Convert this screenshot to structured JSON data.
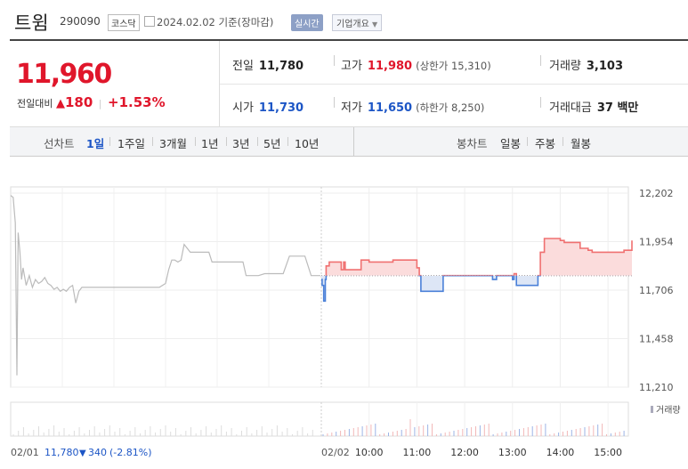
{
  "header": {
    "name": "트윔",
    "code": "290090",
    "market": "코스닥",
    "date_info": "2024.02.02 기준(장마감)",
    "realtime": "실시간",
    "company_info": "기업개요"
  },
  "quote": {
    "price": "11,960",
    "change_label": "전일대비",
    "change": "180",
    "change_pct": "+1.53%",
    "prev_close_label": "전일",
    "prev_close": "11,780",
    "high_label": "고가",
    "high": "11,980",
    "upper_limit": "(상한가 15,310)",
    "volume_label": "거래량",
    "volume": "3,103",
    "open_label": "시가",
    "open": "11,730",
    "low_label": "저가",
    "low": "11,650",
    "lower_limit": "(하한가 8,250)",
    "turnover_label": "거래대금",
    "turnover": "37 백만"
  },
  "tabs": {
    "line_label": "선차트",
    "periods": [
      "1일",
      "1주일",
      "3개월",
      "1년",
      "3년",
      "5년",
      "10년"
    ],
    "active": "1일",
    "candle_label": "봉차트",
    "candles": [
      "일봉",
      "주봉",
      "월봉"
    ]
  },
  "colors": {
    "up": "#e0162b",
    "down": "#1d56c6",
    "accent": "#1d56c6"
  },
  "chart_data": {
    "type": "line",
    "prev_close": 11780,
    "ylim": [
      11210,
      12202
    ],
    "y_ticks": [
      "12,202",
      "11,954",
      "11,706",
      "11,458",
      "11,210"
    ],
    "x_ticks": [
      "02/01",
      "02/02",
      "10:00",
      "11:00",
      "12:00",
      "13:00",
      "14:00",
      "15:00"
    ],
    "volume_label": "거래량",
    "prev_day_summary": {
      "date": "02/01",
      "close": "11,780",
      "change": "340",
      "change_pct": "(-2.81%)"
    },
    "series": [
      {
        "day": "02/01",
        "x": [
          0,
          0.008,
          0.015,
          0.02,
          0.024,
          0.03,
          0.035,
          0.04,
          0.05,
          0.06,
          0.07,
          0.08,
          0.09,
          0.1,
          0.11,
          0.12,
          0.13,
          0.14,
          0.15,
          0.16,
          0.17,
          0.18,
          0.19,
          0.2,
          0.21,
          0.22,
          0.23,
          0.26,
          0.3,
          0.34,
          0.36,
          0.38,
          0.4,
          0.44,
          0.48,
          0.5,
          0.51,
          0.52,
          0.53,
          0.54,
          0.55,
          0.56,
          0.58,
          0.6,
          0.62,
          0.63,
          0.64,
          0.65,
          0.7,
          0.75,
          0.76,
          0.8,
          0.82,
          0.85,
          0.88,
          0.9,
          0.93,
          0.95,
          0.97,
          1.0
        ],
        "y": [
          12190,
          12180,
          12050,
          11270,
          12000,
          11900,
          11760,
          11820,
          11730,
          11780,
          11720,
          11760,
          11740,
          11750,
          11770,
          11740,
          11730,
          11710,
          11720,
          11700,
          11710,
          11700,
          11720,
          11730,
          11640,
          11700,
          11720,
          11720,
          11720,
          11720,
          11720,
          11720,
          11720,
          11720,
          11720,
          11740,
          11810,
          11860,
          11860,
          11850,
          11860,
          11940,
          11900,
          11900,
          11900,
          11900,
          11900,
          11850,
          11850,
          11850,
          11780,
          11780,
          11790,
          11790,
          11790,
          11880,
          11880,
          11880,
          11780,
          11780
        ]
      },
      {
        "day": "02/02",
        "x": [
          "09:00",
          "09:01",
          "09:03",
          "09:05",
          "09:06",
          "09:10",
          "09:20",
          "09:25",
          "09:28",
          "09:30",
          "09:45",
          "09:50",
          "09:52",
          "10:00",
          "10:20",
          "10:30",
          "10:45",
          "10:50",
          "11:00",
          "11:03",
          "11:05",
          "11:30",
          "11:33",
          "11:40",
          "12:30",
          "12:35",
          "12:40",
          "13:00",
          "13:02",
          "13:05",
          "13:30",
          "13:32",
          "13:35",
          "13:40",
          "14:00",
          "14:05",
          "14:15",
          "14:25",
          "14:35",
          "14:40",
          "14:50",
          "15:00",
          "15:10",
          "15:20",
          "15:25",
          "15:30"
        ],
        "y": [
          11760,
          11730,
          11650,
          11760,
          11830,
          11850,
          11850,
          11810,
          11850,
          11810,
          11810,
          11860,
          11860,
          11850,
          11850,
          11860,
          11860,
          11860,
          11820,
          11780,
          11700,
          11700,
          11780,
          11780,
          11780,
          11760,
          11780,
          11760,
          11790,
          11730,
          11730,
          11780,
          11900,
          11970,
          11960,
          11950,
          11950,
          11920,
          11910,
          11900,
          11900,
          11900,
          11900,
          11910,
          11910,
          11960
        ]
      }
    ]
  }
}
